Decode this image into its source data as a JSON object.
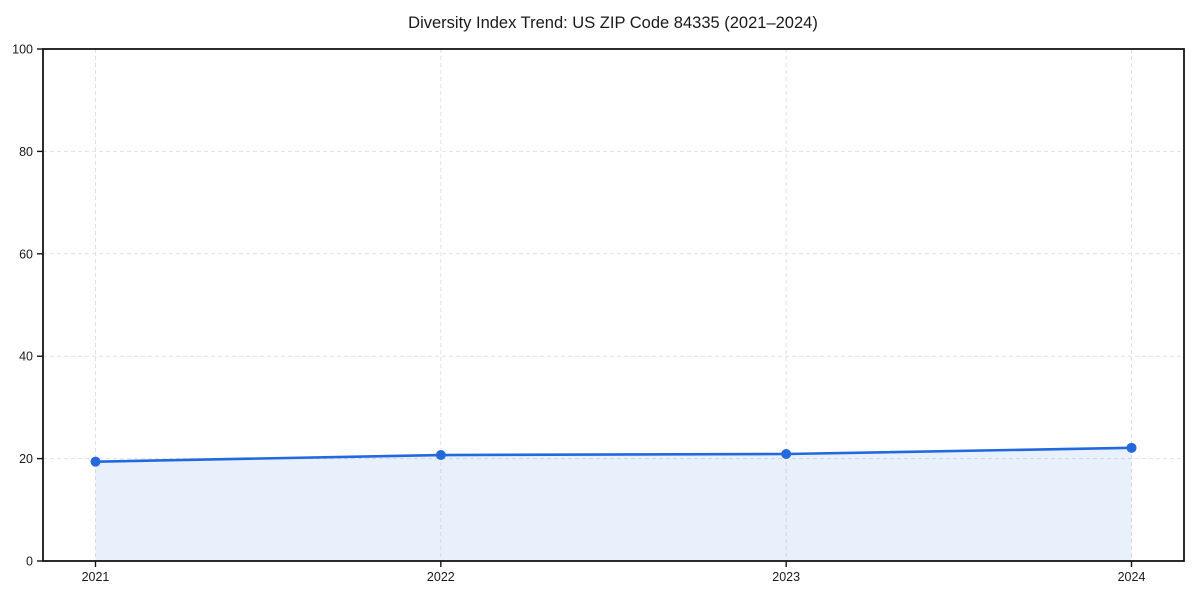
{
  "chart_data": {
    "type": "line",
    "title": "Diversity Index Trend: US ZIP Code 84335 (2021–2024)",
    "categories": [
      "2021",
      "2022",
      "2023",
      "2024"
    ],
    "series": [
      {
        "name": "Diversity Index",
        "values": [
          19.4,
          20.7,
          20.9,
          22.1
        ]
      }
    ],
    "xlabel": "",
    "ylabel": "",
    "ylim": [
      0,
      100
    ],
    "yticks": [
      0,
      20,
      40,
      60,
      80,
      100
    ],
    "grid": "dashed",
    "legend_position": "none",
    "area_fill": true,
    "colors": {
      "line": "#2269e0",
      "marker": "#2269e0",
      "area_fill": "#2269e0",
      "area_fill_opacity": "0.10",
      "grid": "#e2e2e2",
      "frame": "#151515",
      "tick_text": "#1a1a1a",
      "title_text": "#111111",
      "background": "#ffffff"
    }
  }
}
